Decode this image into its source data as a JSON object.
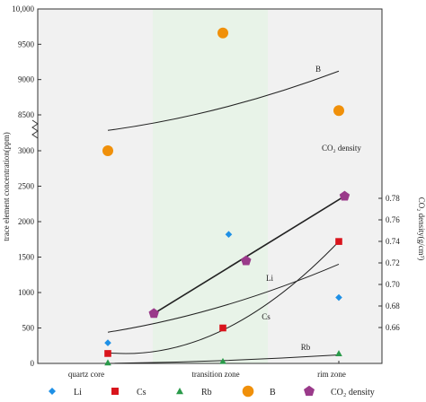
{
  "chart_data": {
    "type": "scatter",
    "zones": [
      "quartz core",
      "transition zone",
      "rim zone"
    ],
    "zone_colors": [
      "#f1f1f1",
      "#e8f3e8",
      "#f1f1f1"
    ],
    "left_axis": {
      "title": "trace element concentration(ppm)",
      "lower_ticks": [
        "0",
        "500",
        "1000",
        "1500",
        "2000",
        "2500",
        "3000"
      ],
      "upper_ticks": [
        "8500",
        "9000",
        "9500",
        "10,000"
      ]
    },
    "right_axis": {
      "title": "CO₂ density(g/cm³)",
      "ticks": [
        "0.66",
        "0.68",
        "0.70",
        "0.72",
        "0.74",
        "0.76",
        "0.78"
      ]
    },
    "series": [
      {
        "name": "Li",
        "marker": "diamond",
        "color": "#1e90e6",
        "points": [
          {
            "zone": 0,
            "y": 290
          },
          {
            "zone": 1.05,
            "y": 1820
          },
          {
            "zone": 2,
            "y": 930
          }
        ]
      },
      {
        "name": "Cs",
        "marker": "square",
        "color": "#d9141c",
        "points": [
          {
            "zone": 0,
            "y": 140
          },
          {
            "zone": 1,
            "y": 500
          },
          {
            "zone": 2,
            "y": 1720
          }
        ]
      },
      {
        "name": "Rb",
        "marker": "triangle",
        "color": "#2a9a4a",
        "points": [
          {
            "zone": 0,
            "y": 10
          },
          {
            "zone": 1,
            "y": 30
          },
          {
            "zone": 2,
            "y": 140
          }
        ]
      },
      {
        "name": "B",
        "marker": "circle",
        "color": "#f0900a",
        "points": [
          {
            "zone": 0,
            "y": 3000
          },
          {
            "zone": 1,
            "y": 9660
          },
          {
            "zone": 2,
            "y": 8560
          }
        ]
      },
      {
        "name": "CO₂ density",
        "marker": "pentagon",
        "color": "#9a3a8a",
        "axis": "right",
        "points": [
          {
            "zone": 0.4,
            "y": 0.673
          },
          {
            "zone": 1.2,
            "y": 0.722
          },
          {
            "zone": 2.05,
            "y": 0.782
          }
        ]
      }
    ],
    "trend_lines": [
      {
        "label": "B",
        "axis": "left-upper",
        "points": [
          [
            0,
            8280
          ],
          [
            1,
            8600
          ],
          [
            2,
            9120
          ]
        ]
      },
      {
        "label": "CO₂ density",
        "axis": "right",
        "points": [
          [
            0.4,
            0.673
          ],
          [
            2.05,
            0.782
          ]
        ]
      },
      {
        "label": "Li",
        "axis": "left",
        "points": [
          [
            0,
            440
          ],
          [
            1,
            810
          ],
          [
            2,
            1400
          ]
        ]
      },
      {
        "label": "Cs",
        "axis": "left",
        "points": [
          [
            0,
            150
          ],
          [
            1,
            470
          ],
          [
            2,
            1720
          ]
        ]
      },
      {
        "label": "Rb",
        "axis": "left",
        "points": [
          [
            0,
            0
          ],
          [
            1,
            40
          ],
          [
            2,
            120
          ]
        ]
      }
    ],
    "legend": [
      "Li",
      "Cs",
      "Rb",
      "B",
      "CO₂ density"
    ]
  }
}
